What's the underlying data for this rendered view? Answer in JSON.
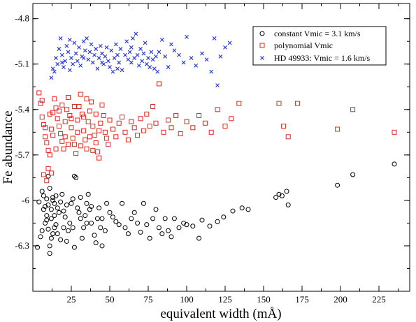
{
  "chart_data": {
    "type": "scatter",
    "title": "",
    "xlabel": "equivalent width (mÅ)",
    "ylabel": "Fe abundance",
    "xlim": [
      0,
      245
    ],
    "ylim": [
      -6.6,
      -4.7
    ],
    "xticks": [
      25,
      50,
      75,
      100,
      125,
      150,
      175,
      200,
      225
    ],
    "yticks": [
      -4.8,
      -5.1,
      -5.4,
      -5.7,
      -6.0,
      -6.3
    ],
    "ytick_labels": [
      "-4.8",
      "-5.1",
      "-5.4",
      "-5.7",
      "-6",
      "-6.3"
    ],
    "grid": false,
    "legend_position": "top-right",
    "series": [
      {
        "name": "constant Vmic = 3.1 km/s",
        "marker": "circle",
        "color": "#000000",
        "points": [
          [
            3,
            -6.31
          ],
          [
            5,
            -6.24
          ],
          [
            4,
            -6.01
          ],
          [
            6,
            -6.2
          ],
          [
            6,
            -5.94
          ],
          [
            7,
            -6.06
          ],
          [
            7,
            -5.97
          ],
          [
            8,
            -6.15
          ],
          [
            8,
            -6.04
          ],
          [
            9,
            -5.99
          ],
          [
            9,
            -6.13
          ],
          [
            10,
            -6.19
          ],
          [
            11,
            -6.3
          ],
          [
            11,
            -6.35
          ],
          [
            10,
            -5.84
          ],
          [
            11,
            -5.92
          ],
          [
            12,
            -6.06
          ],
          [
            12,
            -6.12
          ],
          [
            13,
            -6.0
          ],
          [
            13,
            -6.22
          ],
          [
            13,
            -5.98
          ],
          [
            14,
            -6.1
          ],
          [
            14,
            -6.02
          ],
          [
            15,
            -5.97
          ],
          [
            16,
            -6.05
          ],
          [
            17,
            -6.08
          ],
          [
            15,
            -6.16
          ],
          [
            12,
            -6.25
          ],
          [
            18,
            -6.01
          ],
          [
            19,
            -5.96
          ],
          [
            20,
            -6.18
          ],
          [
            20,
            -6.07
          ],
          [
            21,
            -6.11
          ],
          [
            22,
            -6.03
          ],
          [
            23,
            -6.2
          ],
          [
            24,
            -6.15
          ],
          [
            25,
            -6.02
          ],
          [
            26,
            -5.99
          ],
          [
            27,
            -5.84
          ],
          [
            28,
            -5.85
          ],
          [
            29,
            -6.05
          ],
          [
            30,
            -6.08
          ],
          [
            31,
            -6.12
          ],
          [
            32,
            -6.25
          ],
          [
            33,
            -6.18
          ],
          [
            34,
            -6.1
          ],
          [
            35,
            -6.02
          ],
          [
            36,
            -5.96
          ],
          [
            37,
            -6.06
          ],
          [
            38,
            -6.15
          ],
          [
            40,
            -6.23
          ],
          [
            41,
            -6.28
          ],
          [
            42,
            -6.12
          ],
          [
            43,
            -6.05
          ],
          [
            44,
            -6.18
          ],
          [
            45,
            -6.3
          ],
          [
            47,
            -6.2
          ],
          [
            48,
            -6.02
          ],
          [
            50,
            -6.08
          ],
          [
            52,
            -6.11
          ],
          [
            54,
            -6.14
          ],
          [
            56,
            -6.16
          ],
          [
            58,
            -6.02
          ],
          [
            60,
            -6.18
          ],
          [
            62,
            -6.22
          ],
          [
            64,
            -6.12
          ],
          [
            66,
            -6.08
          ],
          [
            68,
            -6.15
          ],
          [
            70,
            -6.21
          ],
          [
            72,
            -6.02
          ],
          [
            74,
            -6.16
          ],
          [
            76,
            -6.25
          ],
          [
            78,
            -6.12
          ],
          [
            80,
            -6.06
          ],
          [
            82,
            -6.18
          ],
          [
            84,
            -6.22
          ],
          [
            86,
            -6.12
          ],
          [
            88,
            -6.2
          ],
          [
            90,
            -6.24
          ],
          [
            92,
            -6.12
          ],
          [
            95,
            -6.18
          ],
          [
            98,
            -6.15
          ],
          [
            100,
            -6.16
          ],
          [
            104,
            -6.17
          ],
          [
            108,
            -6.25
          ],
          [
            110,
            -6.13
          ],
          [
            115,
            -6.17
          ],
          [
            120,
            -6.14
          ],
          [
            124,
            -6.11
          ],
          [
            130,
            -6.07
          ],
          [
            136,
            -6.05
          ],
          [
            140,
            -6.06
          ],
          [
            158,
            -5.98
          ],
          [
            160,
            -5.96
          ],
          [
            162,
            -5.97
          ],
          [
            165,
            -5.94
          ],
          [
            166,
            -6.03
          ],
          [
            198,
            -5.9
          ],
          [
            208,
            -5.83
          ],
          [
            235,
            -5.76
          ],
          [
            9,
            -6.1
          ],
          [
            16,
            -6.22
          ],
          [
            22,
            -6.27
          ],
          [
            27,
            -6.31
          ],
          [
            38,
            -6.04
          ],
          [
            45,
            -6.12
          ],
          [
            10,
            -6.03
          ],
          [
            14,
            -6.18
          ],
          [
            18,
            -6.26
          ],
          [
            26,
            -6.18
          ],
          [
            31,
            -5.98
          ],
          [
            35,
            -6.15
          ]
        ]
      },
      {
        "name": "polynomial Vmic",
        "marker": "square",
        "color": "#e8231a",
        "points": [
          [
            4,
            -5.29
          ],
          [
            5,
            -5.36
          ],
          [
            6,
            -5.45
          ],
          [
            7,
            -5.5
          ],
          [
            8,
            -5.58
          ],
          [
            9,
            -5.62
          ],
          [
            10,
            -5.67
          ],
          [
            11,
            -5.7
          ],
          [
            12,
            -5.53
          ],
          [
            13,
            -5.42
          ],
          [
            14,
            -5.33
          ],
          [
            15,
            -5.39
          ],
          [
            16,
            -5.46
          ],
          [
            17,
            -5.51
          ],
          [
            18,
            -5.56
          ],
          [
            19,
            -5.61
          ],
          [
            20,
            -5.66
          ],
          [
            21,
            -5.48
          ],
          [
            22,
            -5.4
          ],
          [
            23,
            -5.32
          ],
          [
            24,
            -5.44
          ],
          [
            25,
            -5.52
          ],
          [
            26,
            -5.59
          ],
          [
            27,
            -5.63
          ],
          [
            28,
            -5.69
          ],
          [
            29,
            -5.47
          ],
          [
            30,
            -5.38
          ],
          [
            31,
            -5.3
          ],
          [
            32,
            -5.43
          ],
          [
            33,
            -5.54
          ],
          [
            34,
            -5.6
          ],
          [
            35,
            -5.66
          ],
          [
            36,
            -5.48
          ],
          [
            37,
            -5.41
          ],
          [
            38,
            -5.35
          ],
          [
            39,
            -5.51
          ],
          [
            40,
            -5.57
          ],
          [
            41,
            -5.62
          ],
          [
            42,
            -5.68
          ],
          [
            43,
            -5.72
          ],
          [
            44,
            -5.49
          ],
          [
            45,
            -5.37
          ],
          [
            46,
            -5.44
          ],
          [
            47,
            -5.55
          ],
          [
            48,
            -5.59
          ],
          [
            49,
            -5.63
          ],
          [
            50,
            -5.47
          ],
          [
            52,
            -5.53
          ],
          [
            54,
            -5.58
          ],
          [
            56,
            -5.49
          ],
          [
            58,
            -5.45
          ],
          [
            60,
            -5.55
          ],
          [
            62,
            -5.6
          ],
          [
            64,
            -5.48
          ],
          [
            66,
            -5.52
          ],
          [
            68,
            -5.57
          ],
          [
            70,
            -5.46
          ],
          [
            72,
            -5.54
          ],
          [
            74,
            -5.43
          ],
          [
            76,
            -5.51
          ],
          [
            78,
            -5.38
          ],
          [
            80,
            -5.49
          ],
          [
            82,
            -5.23
          ],
          [
            85,
            -5.55
          ],
          [
            88,
            -5.47
          ],
          [
            90,
            -5.52
          ],
          [
            93,
            -5.44
          ],
          [
            96,
            -5.56
          ],
          [
            100,
            -5.48
          ],
          [
            104,
            -5.52
          ],
          [
            108,
            -5.44
          ],
          [
            112,
            -5.49
          ],
          [
            116,
            -5.55
          ],
          [
            120,
            -5.4
          ],
          [
            125,
            -5.51
          ],
          [
            129,
            -5.46
          ],
          [
            134,
            -5.36
          ],
          [
            160,
            -5.36
          ],
          [
            163,
            -5.51
          ],
          [
            166,
            -5.58
          ],
          [
            172,
            -5.36
          ],
          [
            198,
            -5.53
          ],
          [
            208,
            -5.4
          ],
          [
            235,
            -5.55
          ],
          [
            7,
            -5.83
          ],
          [
            9,
            -5.87
          ],
          [
            10,
            -5.79
          ],
          [
            12,
            -5.82
          ],
          [
            6,
            -5.34
          ],
          [
            8,
            -5.52
          ],
          [
            11,
            -5.43
          ],
          [
            13,
            -5.57
          ],
          [
            15,
            -5.66
          ],
          [
            17,
            -5.41
          ],
          [
            19,
            -5.37
          ],
          [
            21,
            -5.58
          ],
          [
            23,
            -5.63
          ],
          [
            25,
            -5.46
          ],
          [
            27,
            -5.38
          ],
          [
            29,
            -5.55
          ],
          [
            31,
            -5.64
          ],
          [
            33,
            -5.45
          ],
          [
            35,
            -5.33
          ],
          [
            37,
            -5.58
          ],
          [
            39,
            -5.67
          ],
          [
            41,
            -5.43
          ],
          [
            43,
            -5.54
          ]
        ]
      },
      {
        "name": "HD 49933: Vmic = 1.6 km/s",
        "marker": "x",
        "color": "#1b2fe0",
        "points": [
          [
            12,
            -5.19
          ],
          [
            14,
            -5.15
          ],
          [
            15,
            -5.06
          ],
          [
            16,
            -5.1
          ],
          [
            17,
            -5.0
          ],
          [
            18,
            -4.93
          ],
          [
            19,
            -5.04
          ],
          [
            20,
            -5.12
          ],
          [
            21,
            -5.08
          ],
          [
            22,
            -4.98
          ],
          [
            23,
            -5.02
          ],
          [
            24,
            -4.94
          ],
          [
            25,
            -5.06
          ],
          [
            26,
            -5.1
          ],
          [
            27,
            -4.96
          ],
          [
            28,
            -5.03
          ],
          [
            29,
            -5.08
          ],
          [
            30,
            -4.99
          ],
          [
            31,
            -5.11
          ],
          [
            32,
            -5.05
          ],
          [
            33,
            -4.95
          ],
          [
            34,
            -5.01
          ],
          [
            35,
            -4.93
          ],
          [
            36,
            -5.07
          ],
          [
            37,
            -5.02
          ],
          [
            38,
            -4.97
          ],
          [
            39,
            -5.09
          ],
          [
            40,
            -5.04
          ],
          [
            41,
            -5.0
          ],
          [
            42,
            -5.13
          ],
          [
            43,
            -5.06
          ],
          [
            44,
            -4.98
          ],
          [
            45,
            -5.03
          ],
          [
            46,
            -5.1
          ],
          [
            47,
            -5.05
          ],
          [
            48,
            -4.99
          ],
          [
            49,
            -5.08
          ],
          [
            50,
            -5.12
          ],
          [
            51,
            -5.01
          ],
          [
            52,
            -5.15
          ],
          [
            53,
            -5.06
          ],
          [
            54,
            -4.97
          ],
          [
            55,
            -5.04
          ],
          [
            56,
            -5.09
          ],
          [
            57,
            -5.0
          ],
          [
            58,
            -5.14
          ],
          [
            60,
            -5.04
          ],
          [
            61,
            -4.95
          ],
          [
            62,
            -5.07
          ],
          [
            63,
            -5.02
          ],
          [
            64,
            -4.99
          ],
          [
            65,
            -4.93
          ],
          [
            66,
            -5.06
          ],
          [
            67,
            -4.9
          ],
          [
            68,
            -5.04
          ],
          [
            69,
            -5.11
          ],
          [
            70,
            -5.0
          ],
          [
            71,
            -5.08
          ],
          [
            72,
            -5.03
          ],
          [
            73,
            -4.96
          ],
          [
            74,
            -5.1
          ],
          [
            75,
            -5.06
          ],
          [
            76,
            -5.12
          ],
          [
            77,
            -5.02
          ],
          [
            78,
            -5.07
          ],
          [
            79,
            -5.13
          ],
          [
            80,
            -5.05
          ],
          [
            81,
            -5.15
          ],
          [
            82,
            -5.02
          ],
          [
            84,
            -4.94
          ],
          [
            86,
            -5.05
          ],
          [
            88,
            -5.12
          ],
          [
            90,
            -4.97
          ],
          [
            92,
            -5.01
          ],
          [
            95,
            -5.04
          ],
          [
            98,
            -5.09
          ],
          [
            100,
            -4.92
          ],
          [
            103,
            -5.06
          ],
          [
            106,
            -5.11
          ],
          [
            110,
            -5.03
          ],
          [
            113,
            -5.07
          ],
          [
            116,
            -5.15
          ],
          [
            118,
            -4.93
          ],
          [
            120,
            -5.24
          ],
          [
            122,
            -5.05
          ],
          [
            125,
            -4.99
          ],
          [
            128,
            -4.96
          ],
          [
            13,
            -5.13
          ],
          [
            19,
            -5.09
          ],
          [
            24,
            -5.14
          ],
          [
            33,
            -5.06
          ],
          [
            45,
            -5.09
          ],
          [
            55,
            -5.13
          ],
          [
            64,
            -5.09
          ]
        ]
      }
    ]
  }
}
